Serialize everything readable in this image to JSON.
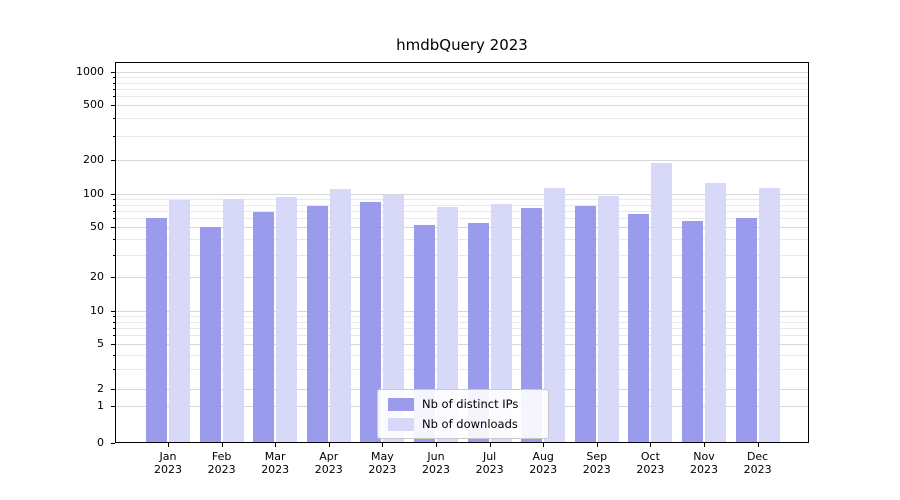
{
  "chart_data": {
    "type": "bar",
    "title": "hmdbQuery 2023",
    "year_label": "2023",
    "categories": [
      "Jan",
      "Feb",
      "Mar",
      "Apr",
      "May",
      "Jun",
      "Jul",
      "Aug",
      "Sep",
      "Oct",
      "Nov",
      "Dec"
    ],
    "series": [
      {
        "name": "Nb of distinct IPs",
        "color": "#9b9bee",
        "values": [
          60,
          50,
          68,
          78,
          85,
          52,
          54,
          75,
          78,
          66,
          57,
          61
        ]
      },
      {
        "name": "Nb of downloads",
        "color": "#d8d8f8",
        "values": [
          88,
          90,
          93,
          110,
          97,
          76,
          81,
          112,
          95,
          190,
          125,
          113
        ]
      }
    ],
    "yscale": "symlog",
    "ylim": [
      0,
      1000
    ],
    "yticks": [
      0,
      1,
      2,
      5,
      10,
      20,
      50,
      100,
      200,
      500,
      1000
    ],
    "yticks_minor": [
      3,
      4,
      6,
      7,
      8,
      9,
      30,
      40,
      60,
      70,
      80,
      90,
      300,
      400,
      600,
      700,
      800,
      900
    ],
    "grid": "horizontal",
    "legend_position": "lower center"
  }
}
